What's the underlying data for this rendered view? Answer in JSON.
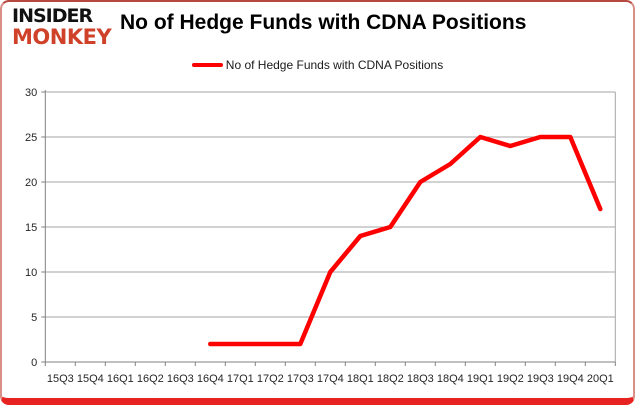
{
  "logo": {
    "line1": "INSIDER",
    "line2": "MONKEY"
  },
  "header": {
    "title": "No of Hedge Funds with CDNA Positions"
  },
  "legend": {
    "label": "No of Hedge Funds with CDNA Positions",
    "swatch_color": "#ff0000"
  },
  "chart_data": {
    "type": "line",
    "title": "No of Hedge Funds with CDNA Positions",
    "categories": [
      "15Q3",
      "15Q4",
      "16Q1",
      "16Q2",
      "16Q3",
      "16Q4",
      "17Q1",
      "17Q2",
      "17Q3",
      "17Q4",
      "18Q1",
      "18Q2",
      "18Q3",
      "18Q4",
      "19Q1",
      "19Q2",
      "19Q3",
      "19Q4",
      "20Q1"
    ],
    "series": [
      {
        "name": "No of Hedge Funds with CDNA Positions",
        "color": "#ff0000",
        "values": [
          null,
          null,
          null,
          null,
          null,
          2,
          2,
          2,
          2,
          10,
          14,
          15,
          20,
          22,
          25,
          24,
          25,
          25,
          17
        ]
      }
    ],
    "ylim": [
      0,
      30
    ],
    "yticks": [
      0,
      5,
      10,
      15,
      20,
      25,
      30
    ],
    "xlabel": "",
    "ylabel": "",
    "grid": true,
    "legend_position": "top-center"
  },
  "colors": {
    "series_line": "#ff0000",
    "gridline": "#a6a6a6",
    "axis": "#808080",
    "frame_bottom_bar": "#e62320",
    "logo_monkey": "#cf4128"
  }
}
